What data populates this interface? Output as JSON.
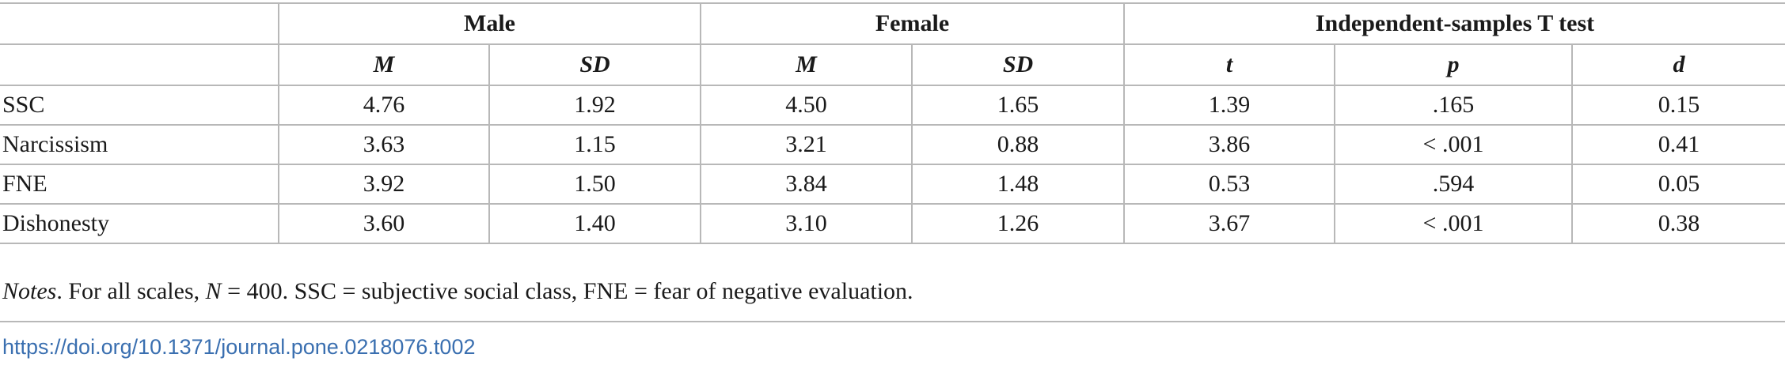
{
  "table": {
    "groups": [
      "",
      "Male",
      "Female",
      "Independent-samples T test"
    ],
    "subheaders": [
      "",
      "M",
      "SD",
      "M",
      "SD",
      "t",
      "p",
      "d"
    ],
    "rows": [
      {
        "label": "SSC",
        "cells": [
          "4.76",
          "1.92",
          "4.50",
          "1.65",
          "1.39",
          ".165",
          "0.15"
        ]
      },
      {
        "label": "Narcissism",
        "cells": [
          "3.63",
          "1.15",
          "3.21",
          "0.88",
          "3.86",
          "< .001",
          "0.41"
        ]
      },
      {
        "label": "FNE",
        "cells": [
          "3.92",
          "1.50",
          "3.84",
          "1.48",
          "0.53",
          ".594",
          "0.05"
        ]
      },
      {
        "label": "Dishonesty",
        "cells": [
          "3.60",
          "1.40",
          "3.10",
          "1.26",
          "3.67",
          "< .001",
          "0.38"
        ]
      }
    ]
  },
  "notes": {
    "lead": "Notes",
    "part1": ". For all scales, ",
    "n_symbol": "N",
    "part2": " = 400. SSC = subjective social class, FNE = fear of negative evaluation."
  },
  "doi": "https://doi.org/10.1371/journal.pone.0218076.t002"
}
